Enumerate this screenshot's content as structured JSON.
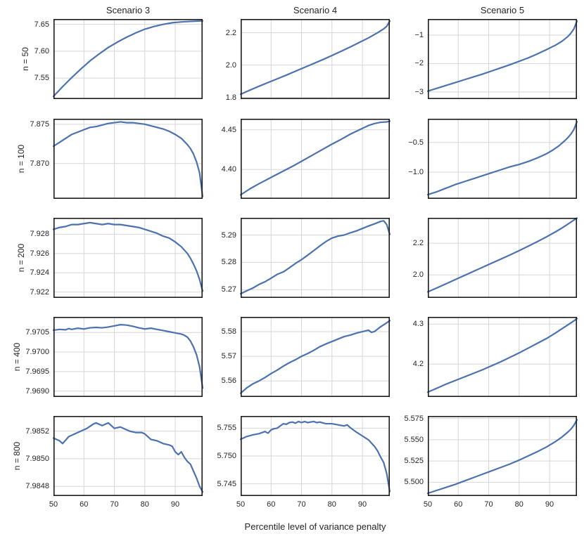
{
  "figure": {
    "xlabel": "Percentile level of variance penalty",
    "col_titles": [
      "Scenario 3",
      "Scenario 4",
      "Scenario 5"
    ],
    "row_labels": [
      "n = 50",
      "n = 100",
      "n = 200",
      "n = 400",
      "n = 800"
    ],
    "x_ticks": [
      50,
      60,
      70,
      80,
      90
    ],
    "xlim": [
      50,
      99
    ],
    "grid": true,
    "legend": "none",
    "colors": {
      "line": "#4C72B0",
      "grid": "#d7d7d7",
      "spine": "#1c1c1c",
      "text": "#262626"
    }
  },
  "chart_data": [
    {
      "type": "line",
      "scenario": "Scenario 3",
      "row_label": "n = 50",
      "ylim": [
        7.511,
        7.66
      ],
      "y_ticks": [
        7.55,
        7.6,
        7.65
      ],
      "y_tick_labels": [
        "7.55",
        "7.60",
        "7.65"
      ],
      "x": [
        50,
        53,
        56,
        59,
        62,
        65,
        68,
        71,
        74,
        77,
        80,
        83,
        86,
        89,
        92,
        95,
        97,
        99
      ],
      "y": [
        7.516,
        7.534,
        7.551,
        7.567,
        7.582,
        7.595,
        7.607,
        7.617,
        7.626,
        7.634,
        7.641,
        7.646,
        7.65,
        7.653,
        7.6545,
        7.6555,
        7.656,
        7.6565
      ]
    },
    {
      "type": "line",
      "scenario": "Scenario 4",
      "row_label": "n = 50",
      "ylim": [
        1.79,
        2.285
      ],
      "y_ticks": [
        1.8,
        2.0,
        2.2
      ],
      "y_tick_labels": [
        "1.8",
        "2.0",
        "2.2"
      ],
      "x": [
        50,
        53,
        56,
        59,
        62,
        65,
        68,
        71,
        74,
        77,
        80,
        83,
        86,
        89,
        92,
        95,
        97,
        98,
        99
      ],
      "y": [
        1.82,
        1.845,
        1.869,
        1.892,
        1.915,
        1.938,
        1.962,
        1.986,
        2.01,
        2.034,
        2.059,
        2.085,
        2.112,
        2.14,
        2.168,
        2.2,
        2.224,
        2.24,
        2.272
      ]
    },
    {
      "type": "line",
      "scenario": "Scenario 5",
      "row_label": "n = 50",
      "ylim": [
        -3.25,
        -0.43
      ],
      "y_ticks": [
        -3,
        -2,
        -1
      ],
      "y_tick_labels": [
        "−3",
        "−2",
        "−1"
      ],
      "x": [
        50,
        53,
        56,
        59,
        62,
        65,
        68,
        71,
        74,
        77,
        80,
        83,
        86,
        89,
        92,
        94,
        96,
        97,
        98,
        99
      ],
      "y": [
        -2.97,
        -2.87,
        -2.77,
        -2.67,
        -2.57,
        -2.47,
        -2.37,
        -2.26,
        -2.15,
        -2.04,
        -1.92,
        -1.8,
        -1.66,
        -1.51,
        -1.35,
        -1.22,
        -1.05,
        -0.93,
        -0.78,
        -0.5
      ]
    },
    {
      "type": "line",
      "scenario": "Scenario 3",
      "row_label": "n = 100",
      "ylim": [
        7.8655,
        7.8757
      ],
      "y_ticks": [
        7.87,
        7.875
      ],
      "y_tick_labels": [
        "7.870",
        "7.875"
      ],
      "x": [
        50,
        52,
        54,
        56,
        58,
        60,
        62,
        64,
        66,
        68,
        70,
        72,
        74,
        76,
        78,
        80,
        82,
        84,
        86,
        88,
        90,
        92,
        94,
        95,
        96,
        97,
        98,
        99
      ],
      "y": [
        7.8722,
        7.8727,
        7.8732,
        7.8737,
        7.874,
        7.8743,
        7.8746,
        7.8747,
        7.8749,
        7.8751,
        7.8752,
        7.8753,
        7.8752,
        7.8752,
        7.8751,
        7.875,
        7.8748,
        7.8746,
        7.8744,
        7.8741,
        7.8737,
        7.8732,
        7.8724,
        7.8719,
        7.8712,
        7.8702,
        7.8688,
        7.8658
      ]
    },
    {
      "type": "line",
      "scenario": "Scenario 4",
      "row_label": "n = 100",
      "ylim": [
        4.363,
        4.464
      ],
      "y_ticks": [
        4.4,
        4.45
      ],
      "y_tick_labels": [
        "4.40",
        "4.45"
      ],
      "x": [
        50,
        53,
        56,
        59,
        62,
        65,
        68,
        71,
        74,
        77,
        80,
        83,
        86,
        89,
        92,
        94,
        96,
        98,
        99
      ],
      "y": [
        4.368,
        4.3755,
        4.382,
        4.388,
        4.394,
        4.4,
        4.406,
        4.4125,
        4.419,
        4.4255,
        4.432,
        4.438,
        4.4445,
        4.45,
        4.4555,
        4.458,
        4.4595,
        4.46,
        4.461
      ]
    },
    {
      "type": "line",
      "scenario": "Scenario 5",
      "row_label": "n = 100",
      "ylim": [
        -1.45,
        -0.1
      ],
      "y_ticks": [
        -1.0,
        -0.5
      ],
      "y_tick_labels": [
        "−1.0",
        "−0.5"
      ],
      "x": [
        50,
        53,
        56,
        59,
        62,
        65,
        68,
        71,
        74,
        77,
        80,
        83,
        86,
        89,
        91,
        93,
        95,
        96,
        97,
        98,
        99
      ],
      "y": [
        -1.38,
        -1.33,
        -1.27,
        -1.21,
        -1.16,
        -1.11,
        -1.06,
        -1.01,
        -0.96,
        -0.91,
        -0.87,
        -0.82,
        -0.76,
        -0.69,
        -0.63,
        -0.56,
        -0.47,
        -0.42,
        -0.36,
        -0.28,
        -0.15
      ]
    },
    {
      "type": "line",
      "scenario": "Scenario 3",
      "row_label": "n = 200",
      "ylim": [
        7.9214,
        7.9297
      ],
      "y_ticks": [
        7.922,
        7.924,
        7.926,
        7.928
      ],
      "y_tick_labels": [
        "7.922",
        "7.924",
        "7.926",
        "7.928"
      ],
      "x": [
        50,
        52,
        54,
        56,
        58,
        60,
        62,
        64,
        66,
        68,
        70,
        72,
        74,
        76,
        78,
        80,
        82,
        84,
        86,
        88,
        90,
        92,
        94,
        95,
        96,
        97,
        98,
        99
      ],
      "y": [
        7.9285,
        7.9287,
        7.9288,
        7.929,
        7.929,
        7.9291,
        7.9292,
        7.9291,
        7.929,
        7.9291,
        7.929,
        7.929,
        7.9289,
        7.9288,
        7.9287,
        7.9285,
        7.9283,
        7.9281,
        7.9278,
        7.9276,
        7.9272,
        7.9267,
        7.926,
        7.9255,
        7.9249,
        7.9242,
        7.9233,
        7.9221
      ]
    },
    {
      "type": "line",
      "scenario": "Scenario 4",
      "row_label": "n = 200",
      "ylim": [
        5.267,
        5.2963
      ],
      "y_ticks": [
        5.27,
        5.28,
        5.29
      ],
      "y_tick_labels": [
        "5.27",
        "5.28",
        "5.29"
      ],
      "x": [
        50,
        52,
        54,
        56,
        58,
        60,
        62,
        64,
        66,
        68,
        70,
        72,
        74,
        76,
        78,
        80,
        82,
        84,
        86,
        88,
        90,
        92,
        94,
        96,
        97,
        98,
        99
      ],
      "y": [
        5.2685,
        5.2696,
        5.2706,
        5.2719,
        5.2729,
        5.2742,
        5.2756,
        5.2765,
        5.278,
        5.2796,
        5.281,
        5.2826,
        5.2843,
        5.286,
        5.2876,
        5.2889,
        5.2896,
        5.29,
        5.2908,
        5.2915,
        5.2924,
        5.2933,
        5.2941,
        5.295,
        5.2952,
        5.2938,
        5.2902
      ]
    },
    {
      "type": "line",
      "scenario": "Scenario 5",
      "row_label": "n = 200",
      "ylim": [
        1.855,
        2.36
      ],
      "y_ticks": [
        2.0,
        2.2
      ],
      "y_tick_labels": [
        "2.0",
        "2.2"
      ],
      "x": [
        50,
        53,
        56,
        59,
        62,
        65,
        68,
        71,
        74,
        77,
        80,
        83,
        86,
        89,
        92,
        94,
        96,
        97,
        98,
        99
      ],
      "y": [
        1.893,
        1.918,
        1.944,
        1.97,
        1.996,
        2.022,
        2.048,
        2.074,
        2.1,
        2.126,
        2.153,
        2.181,
        2.21,
        2.24,
        2.272,
        2.295,
        2.32,
        2.333,
        2.346,
        2.358
      ]
    },
    {
      "type": "line",
      "scenario": "Scenario 3",
      "row_label": "n = 400",
      "ylim": [
        7.96885,
        7.9709
      ],
      "y_ticks": [
        7.969,
        7.9695,
        7.97,
        7.9705
      ],
      "y_tick_labels": [
        "7.9690",
        "7.9695",
        "7.9700",
        "7.9705"
      ],
      "x": [
        50,
        52,
        54,
        55,
        56,
        58,
        60,
        62,
        64,
        66,
        68,
        70,
        72,
        74,
        76,
        78,
        80,
        82,
        84,
        86,
        88,
        90,
        92,
        93,
        94,
        95,
        96,
        97,
        98,
        99
      ],
      "y": [
        7.97056,
        7.97058,
        7.97057,
        7.9706,
        7.97058,
        7.97061,
        7.97059,
        7.97062,
        7.97063,
        7.97062,
        7.97064,
        7.97067,
        7.9707,
        7.97069,
        7.97066,
        7.97062,
        7.97059,
        7.97061,
        7.97058,
        7.97055,
        7.97052,
        7.97049,
        7.97046,
        7.97043,
        7.97038,
        7.97028,
        7.97013,
        7.96993,
        7.96962,
        7.96908
      ]
    },
    {
      "type": "line",
      "scenario": "Scenario 4",
      "row_label": "n = 400",
      "ylim": [
        5.5535,
        5.586
      ],
      "y_ticks": [
        5.56,
        5.57,
        5.58
      ],
      "y_tick_labels": [
        "5.56",
        "5.57",
        "5.58"
      ],
      "x": [
        50,
        52,
        54,
        56,
        58,
        60,
        62,
        64,
        66,
        68,
        70,
        72,
        74,
        76,
        78,
        80,
        82,
        84,
        86,
        88,
        90,
        92,
        93,
        94,
        96,
        98,
        99
      ],
      "y": [
        5.555,
        5.5572,
        5.5588,
        5.56,
        5.5614,
        5.563,
        5.5644,
        5.566,
        5.5674,
        5.5686,
        5.57,
        5.5711,
        5.5724,
        5.5739,
        5.575,
        5.576,
        5.577,
        5.578,
        5.5786,
        5.5794,
        5.58,
        5.5806,
        5.5797,
        5.5801,
        5.582,
        5.5836,
        5.5845
      ]
    },
    {
      "type": "line",
      "scenario": "Scenario 5",
      "row_label": "n = 400",
      "ylim": [
        4.118,
        4.318
      ],
      "y_ticks": [
        4.2,
        4.3
      ],
      "y_tick_labels": [
        "4.2",
        "4.3"
      ],
      "x": [
        50,
        53,
        56,
        59,
        62,
        65,
        68,
        71,
        74,
        77,
        80,
        83,
        86,
        89,
        92,
        94,
        96,
        97,
        98,
        99
      ],
      "y": [
        4.13,
        4.14,
        4.15,
        4.159,
        4.168,
        4.177,
        4.186,
        4.196,
        4.206,
        4.217,
        4.228,
        4.24,
        4.252,
        4.264,
        4.278,
        4.288,
        4.298,
        4.303,
        4.308,
        4.314
      ]
    },
    {
      "type": "line",
      "scenario": "Scenario 3",
      "row_label": "n = 800",
      "ylim": [
        7.98473,
        7.98531
      ],
      "y_ticks": [
        7.9848,
        7.985,
        7.9852
      ],
      "y_tick_labels": [
        "7.9848",
        "7.9850",
        "7.9852"
      ],
      "x": [
        50,
        52,
        53,
        55,
        57,
        59,
        61,
        63,
        64,
        66,
        67,
        68,
        70,
        72,
        73,
        75,
        77,
        79,
        80,
        82,
        84,
        86,
        88,
        89,
        90,
        91,
        92,
        93,
        94,
        95,
        96,
        97,
        98,
        99
      ],
      "y": [
        7.98515,
        7.98513,
        7.98511,
        7.98516,
        7.98518,
        7.9852,
        7.98522,
        7.98525,
        7.98526,
        7.98524,
        7.98525,
        7.98526,
        7.98522,
        7.98523,
        7.98522,
        7.9852,
        7.98519,
        7.98519,
        7.98518,
        7.98514,
        7.98513,
        7.98511,
        7.9851,
        7.98509,
        7.98505,
        7.98503,
        7.98505,
        7.98501,
        7.98498,
        7.98496,
        7.98491,
        7.98486,
        7.9848,
        7.98476
      ]
    },
    {
      "type": "line",
      "scenario": "Scenario 4",
      "row_label": "n = 800",
      "ylim": [
        5.7428,
        5.7572
      ],
      "y_ticks": [
        5.745,
        5.75,
        5.755
      ],
      "y_tick_labels": [
        "5.745",
        "5.750",
        "5.755"
      ],
      "x": [
        50,
        52,
        54,
        56,
        58,
        59,
        60,
        61,
        62,
        63,
        64,
        65,
        66,
        67,
        68,
        69,
        70,
        71,
        72,
        73,
        74,
        75,
        76,
        78,
        80,
        82,
        84,
        85,
        86,
        88,
        90,
        92,
        94,
        95,
        96,
        97,
        98,
        99
      ],
      "y": [
        5.753,
        5.7535,
        5.7538,
        5.754,
        5.7544,
        5.7541,
        5.7547,
        5.7549,
        5.755,
        5.7554,
        5.7558,
        5.7557,
        5.756,
        5.7561,
        5.7559,
        5.7562,
        5.756,
        5.7562,
        5.756,
        5.7561,
        5.7562,
        5.756,
        5.7561,
        5.7558,
        5.7558,
        5.7556,
        5.7554,
        5.7556,
        5.7551,
        5.7543,
        5.7536,
        5.7529,
        5.7517,
        5.7509,
        5.7498,
        5.7488,
        5.7468,
        5.7436
      ]
    },
    {
      "type": "line",
      "scenario": "Scenario 5",
      "row_label": "n = 800",
      "ylim": [
        5.4838,
        5.578
      ],
      "y_ticks": [
        5.5,
        5.525,
        5.55,
        5.575
      ],
      "y_tick_labels": [
        "5.500",
        "5.525",
        "5.550",
        "5.575"
      ],
      "x": [
        50,
        53,
        56,
        59,
        62,
        65,
        68,
        71,
        74,
        77,
        80,
        83,
        86,
        89,
        92,
        94,
        96,
        97,
        98,
        99
      ],
      "y": [
        5.487,
        5.4905,
        5.494,
        5.4975,
        5.5015,
        5.5055,
        5.5095,
        5.5135,
        5.5175,
        5.5215,
        5.526,
        5.531,
        5.536,
        5.5415,
        5.548,
        5.553,
        5.559,
        5.5625,
        5.567,
        5.5735
      ]
    }
  ]
}
